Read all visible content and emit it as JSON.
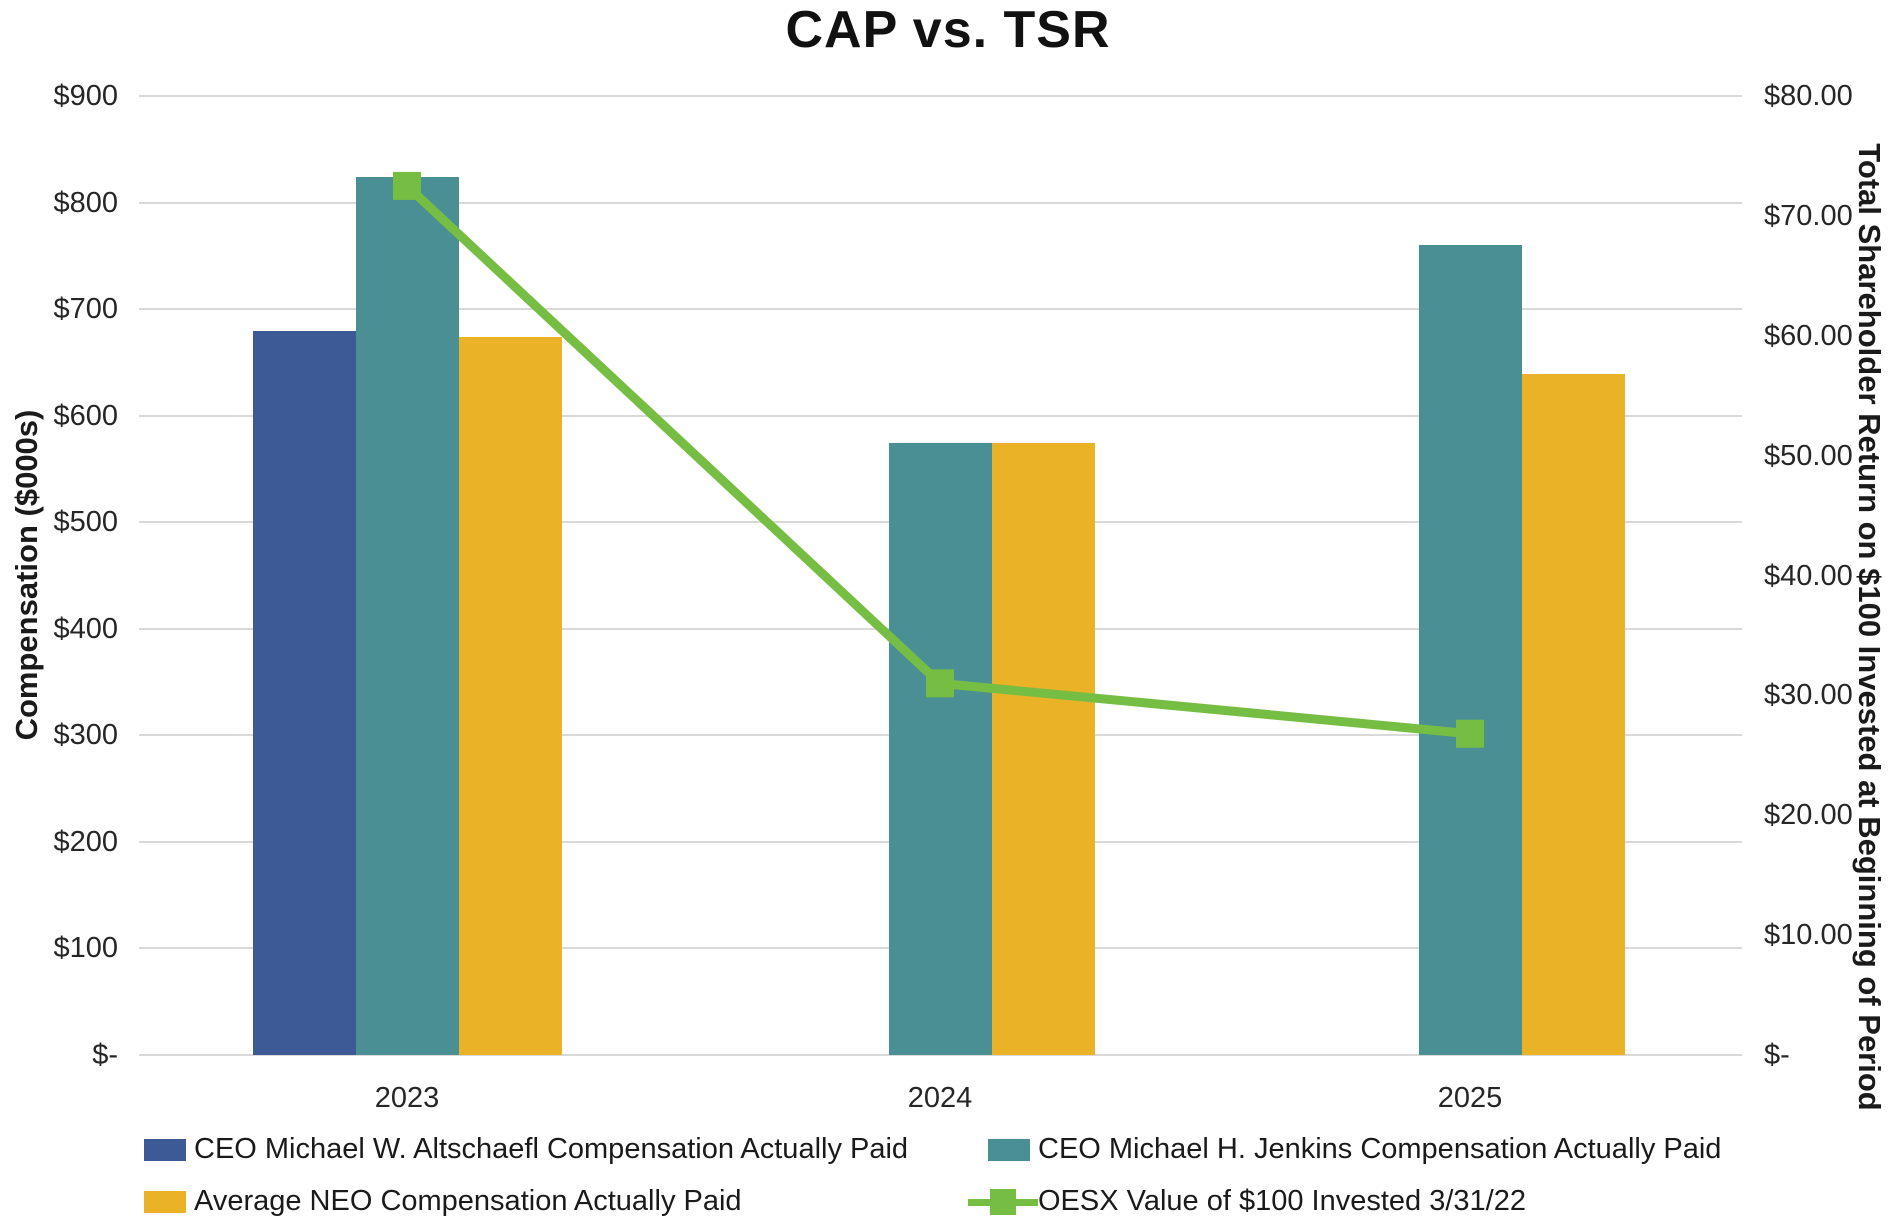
{
  "chart_data": {
    "type": "combo_bar_line",
    "title": "CAP vs. TSR",
    "categories": [
      "2023",
      "2024",
      "2025"
    ],
    "bar_series": [
      {
        "name": "CEO Michael W. Altschaefl Compensation Actually Paid",
        "color": "#3D5A96",
        "axis": "left",
        "values": [
          679,
          null,
          null
        ]
      },
      {
        "name": "CEO Michael H. Jenkins Compensation Actually Paid",
        "color": "#4A8F94",
        "axis": "left",
        "values": [
          824,
          574,
          760
        ]
      },
      {
        "name": "Average NEO Compensation Actually Paid",
        "color": "#E9B227",
        "axis": "left",
        "values": [
          674,
          574,
          639
        ]
      }
    ],
    "line_series": [
      {
        "name": "OESX Value of $100 Invested 3/31/22",
        "color": "#76BD43",
        "marker": "square",
        "axis": "right",
        "values": [
          72.5,
          31.0,
          26.8
        ]
      }
    ],
    "left_axis": {
      "label": "Compensation ($000s)",
      "range": [
        0,
        900
      ],
      "tick_step": 100,
      "tick_labels": [
        "$900",
        "$800",
        "$700",
        "$600",
        "$500",
        "$400",
        "$300",
        "$200",
        "$100",
        "$-"
      ]
    },
    "right_axis": {
      "label": "Total Shareholder Return on $100 Invested at Beginning of Period",
      "range": [
        0,
        80
      ],
      "tick_step": 10,
      "tick_labels": [
        "$80.00",
        "$70.00",
        "$60.00",
        "$50.00",
        "$40.00",
        "$30.00",
        "$20.00",
        "$10.00",
        "$-"
      ]
    },
    "grid": true,
    "legend_position": "bottom",
    "gridline_color": "#D9D9D9",
    "text_color": "#262626"
  },
  "legend": {
    "items": [
      {
        "label": "CEO Michael W. Altschaefl Compensation Actually Paid",
        "swatch": "bar",
        "color": "#3D5A96",
        "row": 0,
        "col": 0
      },
      {
        "label": "CEO Michael H. Jenkins Compensation Actually Paid",
        "swatch": "bar",
        "color": "#4A8F94",
        "row": 0,
        "col": 1
      },
      {
        "label": "Average NEO Compensation Actually Paid",
        "swatch": "bar",
        "color": "#E9B227",
        "row": 1,
        "col": 0
      },
      {
        "label": "OESX Value of $100 Invested 3/31/22",
        "swatch": "line-marker",
        "color": "#76BD43",
        "row": 1,
        "col": 1
      }
    ]
  }
}
